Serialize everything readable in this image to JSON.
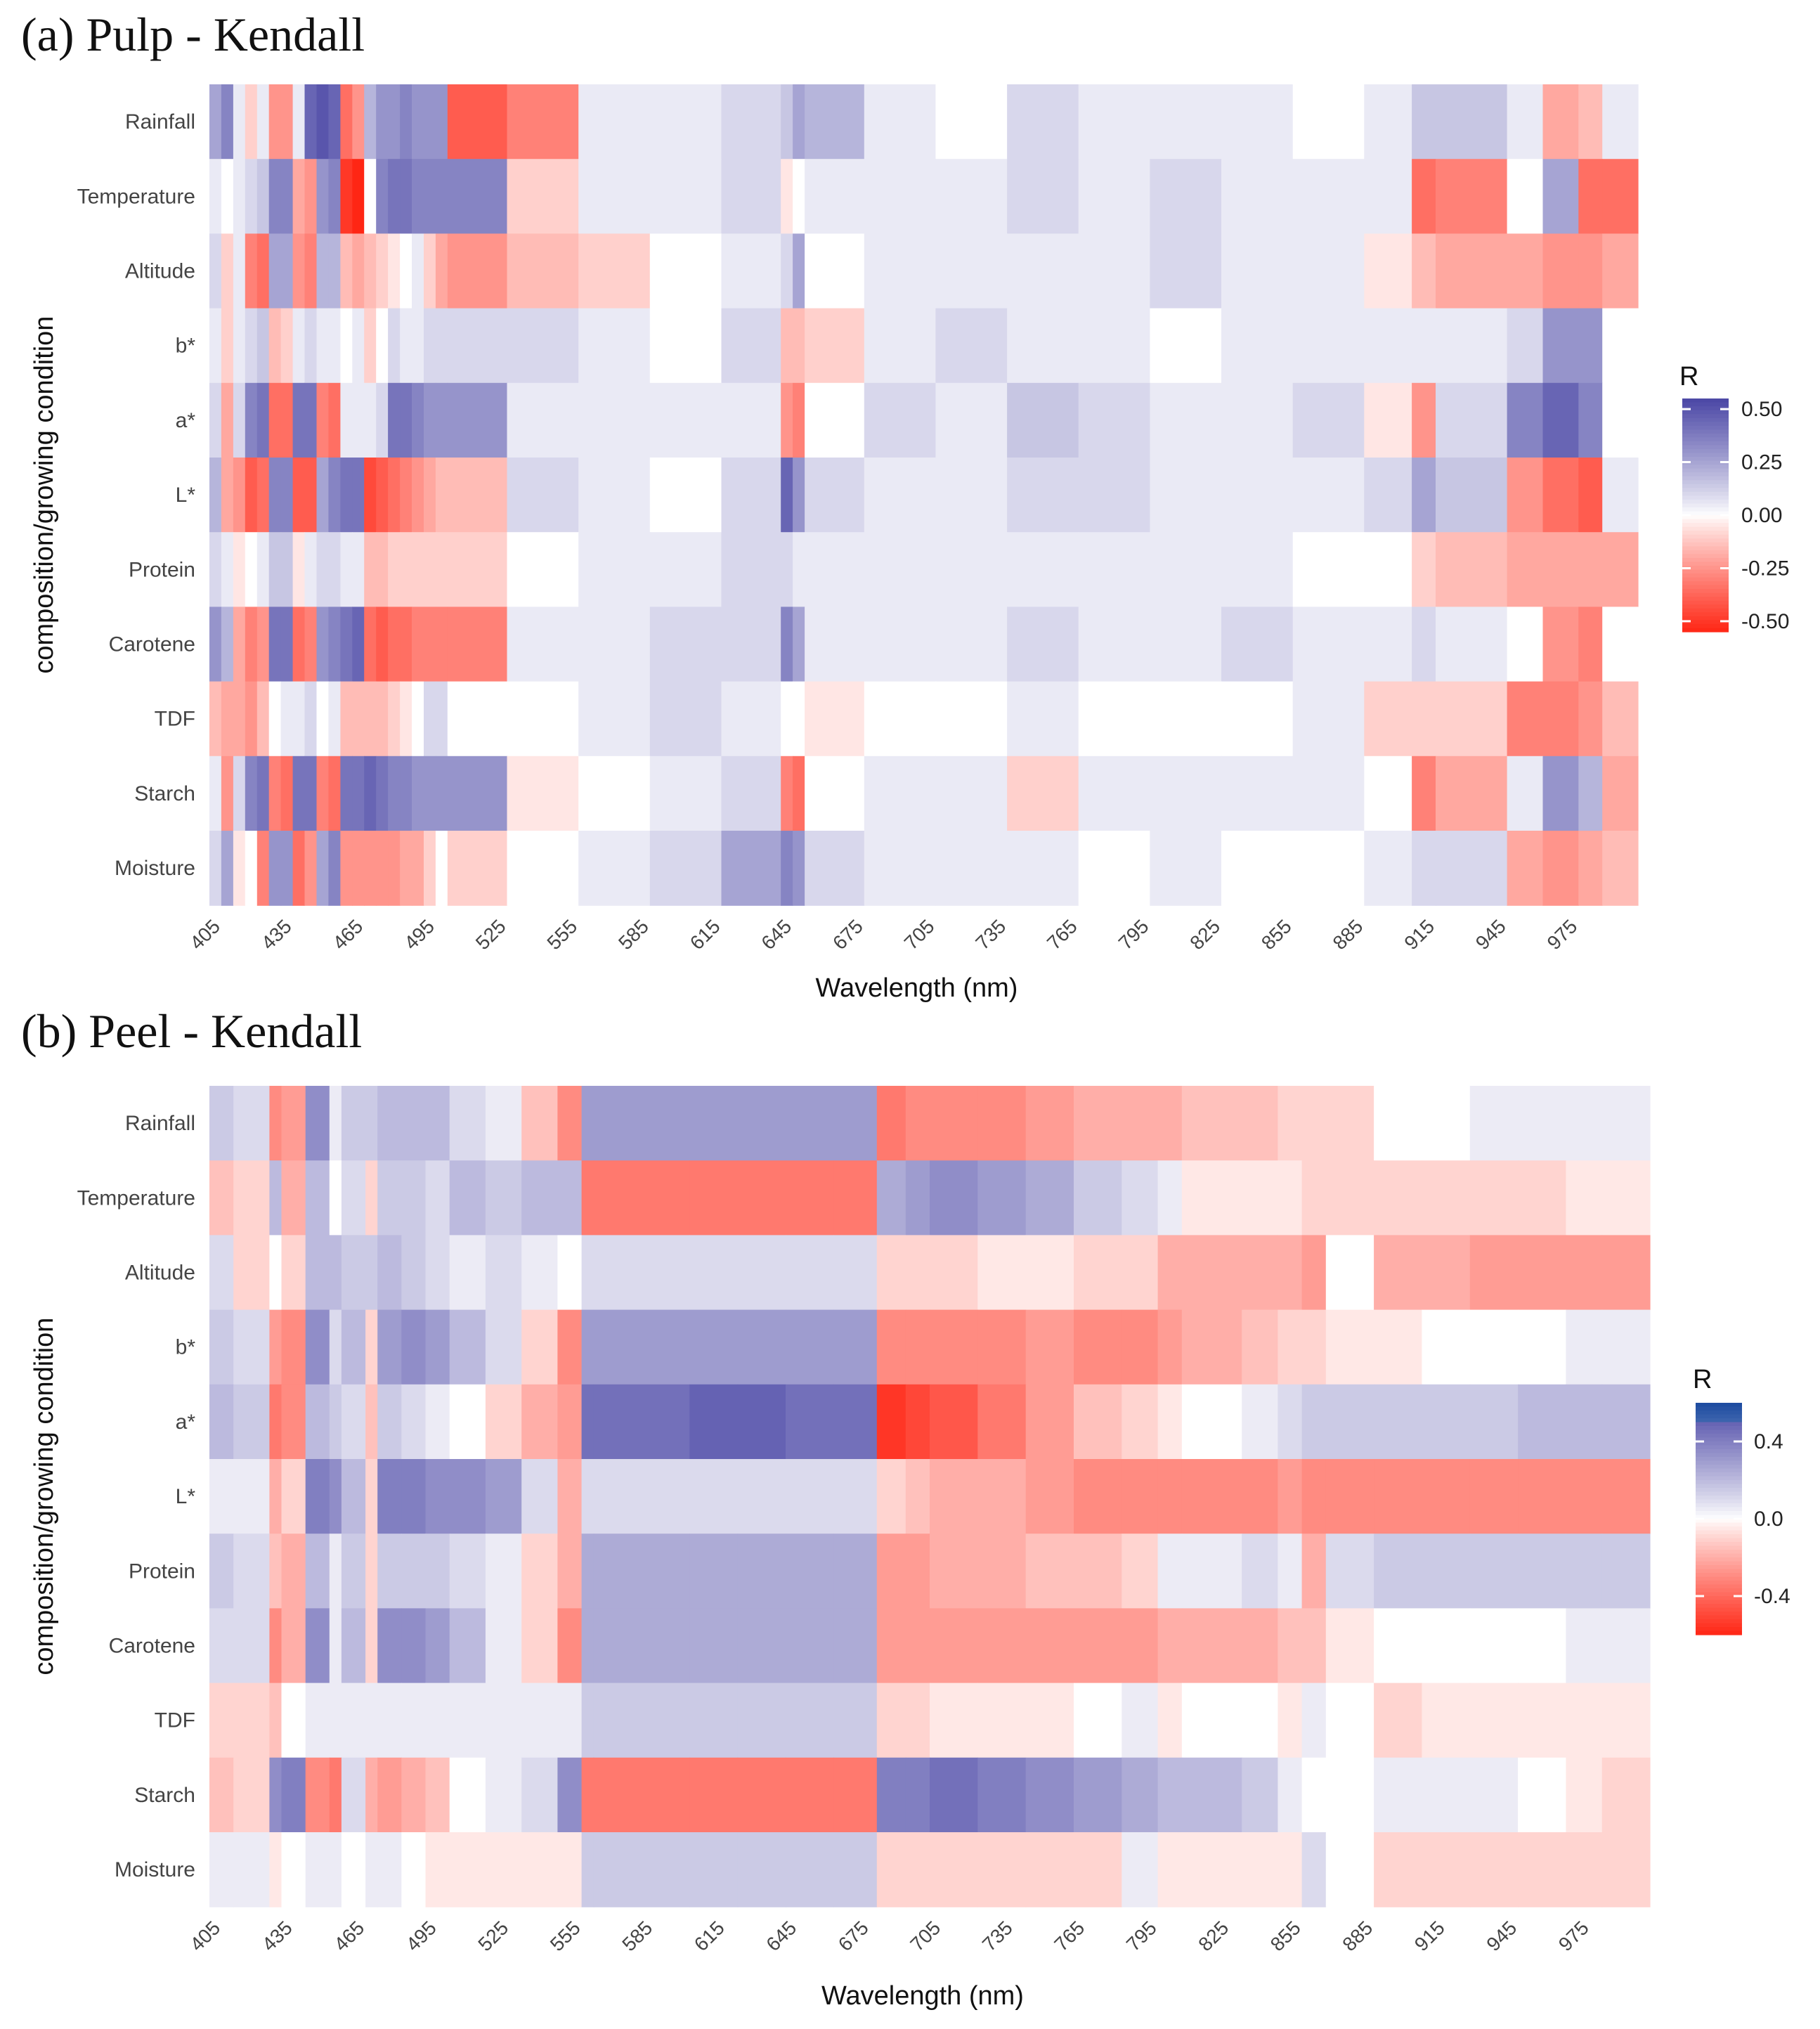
{
  "chart_data": [
    {
      "type": "heatmap",
      "title": "(a) Pulp - Kendall",
      "xlabel": "Wavelength (nm)",
      "ylabel": "composition/growing condition",
      "rows": [
        "Rainfall",
        "Temperature",
        "Altitude",
        "b*",
        "a*",
        "L*",
        "Protein",
        "Carotene",
        "TDF",
        "Starch",
        "Moisture"
      ],
      "x_ticks": [
        405,
        435,
        465,
        495,
        525,
        555,
        585,
        615,
        645,
        675,
        705,
        735,
        765,
        795,
        825,
        855,
        885,
        915,
        945,
        975
      ],
      "x_range": [
        400,
        1000
      ],
      "bins": [
        400,
        405,
        410,
        415,
        420,
        425,
        430,
        435,
        440,
        445,
        450,
        455,
        460,
        465,
        470,
        475,
        480,
        485,
        490,
        495,
        500,
        525,
        555,
        585,
        615,
        640,
        645,
        650,
        675,
        705,
        735,
        765,
        795,
        825,
        855,
        885,
        905,
        915,
        945,
        960,
        975,
        985,
        1000
      ],
      "values": {
        "Rainfall": [
          0.25,
          0.35,
          0.05,
          -0.1,
          0.05,
          -0.25,
          -0.25,
          0.05,
          0.45,
          0.5,
          0.45,
          -0.35,
          -0.25,
          0.2,
          0.3,
          0.3,
          0.35,
          0.3,
          0.3,
          0.3,
          -0.4,
          -0.3,
          0.05,
          0.05,
          0.1,
          0.15,
          0.25,
          0.2,
          0.05,
          0.0,
          0.1,
          0.05,
          0.05,
          0.05,
          0.0,
          0.05,
          0.15,
          0.15,
          0.05,
          -0.2,
          -0.15,
          0.05
        ],
        "Temperature": [
          0.05,
          0.0,
          0.05,
          0.1,
          0.15,
          0.35,
          0.35,
          -0.2,
          -0.25,
          0.3,
          0.35,
          -0.5,
          -0.55,
          0.0,
          0.35,
          0.4,
          0.4,
          0.35,
          0.35,
          0.35,
          0.35,
          -0.1,
          0.05,
          0.05,
          0.1,
          -0.05,
          0.0,
          0.05,
          0.05,
          0.05,
          0.1,
          0.05,
          0.1,
          0.05,
          0.05,
          0.05,
          -0.35,
          -0.3,
          0.0,
          0.25,
          -0.35,
          -0.35
        ],
        "Altitude": [
          0.1,
          -0.1,
          0.05,
          -0.3,
          -0.35,
          0.25,
          0.25,
          -0.25,
          -0.3,
          0.2,
          0.2,
          -0.15,
          -0.2,
          -0.15,
          -0.1,
          -0.05,
          0.0,
          0.05,
          -0.1,
          -0.2,
          -0.25,
          -0.15,
          -0.1,
          0.0,
          0.05,
          0.1,
          0.25,
          0.0,
          0.05,
          0.05,
          0.05,
          0.05,
          0.1,
          0.05,
          0.05,
          -0.05,
          -0.15,
          -0.2,
          -0.2,
          -0.25,
          -0.25,
          -0.2
        ],
        "b*": [
          0.05,
          -0.1,
          0.05,
          0.1,
          0.15,
          -0.15,
          -0.1,
          0.05,
          0.1,
          0.05,
          0.05,
          0.0,
          0.05,
          -0.1,
          0.0,
          0.1,
          0.05,
          0.05,
          0.1,
          0.1,
          0.1,
          0.1,
          0.05,
          0.0,
          0.1,
          -0.15,
          -0.15,
          -0.1,
          0.05,
          0.1,
          0.05,
          0.05,
          0.0,
          0.05,
          0.05,
          0.05,
          0.05,
          0.05,
          0.1,
          0.3,
          0.3,
          0.0
        ],
        "a*": [
          0.1,
          -0.2,
          0.1,
          0.35,
          0.4,
          -0.35,
          -0.35,
          0.4,
          0.4,
          -0.3,
          -0.35,
          0.05,
          0.05,
          0.05,
          0.1,
          0.4,
          0.4,
          0.35,
          0.3,
          0.3,
          0.3,
          0.05,
          0.05,
          0.05,
          0.05,
          -0.25,
          -0.3,
          0.0,
          0.1,
          0.05,
          0.15,
          0.1,
          0.05,
          0.05,
          0.1,
          -0.05,
          -0.25,
          0.1,
          0.35,
          0.45,
          0.35,
          0.0
        ],
        "L*": [
          0.2,
          -0.2,
          -0.25,
          -0.4,
          -0.35,
          0.35,
          0.35,
          -0.4,
          -0.4,
          0.25,
          0.35,
          0.4,
          0.4,
          -0.45,
          -0.4,
          -0.35,
          -0.3,
          -0.25,
          -0.2,
          -0.15,
          -0.15,
          0.1,
          0.05,
          0.0,
          0.1,
          0.45,
          0.3,
          0.1,
          0.05,
          0.05,
          0.1,
          0.1,
          0.05,
          0.05,
          0.05,
          0.1,
          0.25,
          0.15,
          -0.25,
          -0.35,
          -0.4,
          0.05
        ],
        "Protein": [
          0.1,
          0.05,
          -0.05,
          0.0,
          0.05,
          0.15,
          0.15,
          -0.05,
          0.05,
          0.1,
          0.1,
          0.05,
          0.05,
          -0.15,
          -0.15,
          -0.1,
          -0.1,
          -0.1,
          -0.1,
          -0.1,
          -0.1,
          0.0,
          0.05,
          0.05,
          0.1,
          0.1,
          0.05,
          0.05,
          0.05,
          0.05,
          0.05,
          0.05,
          0.05,
          0.05,
          0.0,
          0.0,
          -0.1,
          -0.15,
          -0.2,
          -0.2,
          -0.2,
          -0.2
        ],
        "Carotene": [
          0.3,
          0.2,
          -0.2,
          -0.3,
          -0.25,
          0.4,
          0.4,
          -0.35,
          -0.3,
          0.3,
          0.35,
          0.4,
          0.45,
          -0.35,
          -0.4,
          -0.35,
          -0.35,
          -0.3,
          -0.3,
          -0.3,
          -0.3,
          0.05,
          0.05,
          0.1,
          0.1,
          0.35,
          0.25,
          0.05,
          0.05,
          0.05,
          0.1,
          0.05,
          0.05,
          0.1,
          0.05,
          0.05,
          0.1,
          0.05,
          0.0,
          -0.25,
          -0.3,
          0.0
        ],
        "TDF": [
          -0.15,
          -0.2,
          -0.2,
          -0.25,
          -0.15,
          0.0,
          0.05,
          0.05,
          0.1,
          0.0,
          0.05,
          -0.15,
          -0.15,
          -0.15,
          -0.15,
          -0.1,
          -0.05,
          0.0,
          0.1,
          0.1,
          0.0,
          0.0,
          0.05,
          0.1,
          0.05,
          0.0,
          0.0,
          -0.05,
          0.0,
          0.0,
          0.05,
          0.0,
          0.0,
          0.0,
          0.05,
          -0.1,
          -0.1,
          -0.1,
          -0.3,
          -0.3,
          -0.25,
          -0.15
        ],
        "Starch": [
          0.05,
          -0.25,
          0.1,
          0.35,
          0.4,
          -0.3,
          -0.35,
          0.4,
          0.4,
          -0.3,
          -0.35,
          0.4,
          0.4,
          0.45,
          0.4,
          0.35,
          0.35,
          0.3,
          0.3,
          0.3,
          0.3,
          -0.05,
          0.0,
          0.05,
          0.1,
          -0.3,
          -0.35,
          0.0,
          0.05,
          0.05,
          -0.1,
          0.05,
          0.05,
          0.05,
          0.05,
          0.0,
          -0.3,
          -0.2,
          0.05,
          0.3,
          0.2,
          -0.2
        ],
        "Moisture": [
          0.1,
          0.25,
          -0.05,
          0.0,
          -0.3,
          0.3,
          0.3,
          -0.35,
          -0.25,
          0.25,
          0.35,
          -0.25,
          -0.25,
          -0.25,
          -0.25,
          -0.25,
          -0.2,
          -0.2,
          -0.1,
          0.0,
          -0.1,
          0.0,
          0.05,
          0.1,
          0.25,
          0.35,
          0.3,
          0.1,
          0.05,
          0.05,
          0.05,
          0.0,
          0.05,
          0.0,
          0.0,
          0.05,
          0.1,
          0.1,
          -0.2,
          -0.25,
          -0.2,
          -0.15
        ]
      },
      "legend": {
        "title": "R",
        "ticks": [
          0.5,
          0.25,
          0.0,
          -0.25,
          -0.5
        ],
        "tick_labels": [
          "0.50",
          "0.25",
          "0.00",
          "-0.25",
          "-0.50"
        ],
        "range": [
          -0.55,
          0.55
        ]
      }
    },
    {
      "type": "heatmap",
      "title": "(b) Peel - Kendall",
      "xlabel": "Wavelength (nm)",
      "ylabel": "composition/growing condition",
      "rows": [
        "Rainfall",
        "Temperature",
        "Altitude",
        "b*",
        "a*",
        "L*",
        "Protein",
        "Carotene",
        "TDF",
        "Starch",
        "Moisture"
      ],
      "x_ticks": [
        405,
        435,
        465,
        495,
        525,
        555,
        585,
        615,
        645,
        675,
        705,
        735,
        765,
        795,
        825,
        855,
        885,
        915,
        945,
        975
      ],
      "x_range": [
        400,
        1000
      ],
      "bins": [
        400,
        410,
        425,
        430,
        440,
        450,
        455,
        465,
        470,
        480,
        490,
        500,
        515,
        530,
        545,
        555,
        560,
        600,
        620,
        640,
        660,
        678,
        690,
        700,
        720,
        740,
        760,
        780,
        795,
        805,
        830,
        845,
        855,
        865,
        885,
        905,
        925,
        945,
        965,
        980,
        1000
      ],
      "values": {
        "Rainfall": [
          0.15,
          0.1,
          -0.3,
          -0.25,
          0.35,
          0.05,
          0.15,
          0.15,
          0.2,
          0.2,
          0.2,
          0.1,
          0.05,
          -0.15,
          -0.3,
          0.3,
          0.3,
          0.3,
          0.3,
          0.3,
          0.3,
          -0.35,
          -0.3,
          -0.3,
          -0.3,
          -0.25,
          -0.2,
          -0.2,
          -0.2,
          -0.15,
          -0.15,
          -0.1,
          -0.1,
          -0.1,
          0.0,
          0.0,
          0.05,
          0.05,
          0.05,
          0.05
        ],
        "Temperature": [
          -0.15,
          -0.1,
          0.2,
          -0.2,
          0.2,
          0.0,
          0.1,
          -0.1,
          0.15,
          0.15,
          0.1,
          0.2,
          0.15,
          0.2,
          0.2,
          -0.35,
          -0.35,
          -0.35,
          -0.35,
          -0.35,
          -0.35,
          0.25,
          0.3,
          0.35,
          0.3,
          0.25,
          0.15,
          0.1,
          0.05,
          -0.05,
          -0.05,
          -0.05,
          -0.1,
          -0.1,
          -0.1,
          -0.1,
          -0.1,
          -0.1,
          -0.05,
          -0.05
        ],
        "Altitude": [
          0.1,
          -0.1,
          0.0,
          -0.1,
          0.2,
          0.2,
          0.15,
          0.15,
          0.2,
          0.15,
          0.1,
          0.05,
          0.1,
          0.05,
          0.0,
          0.1,
          0.1,
          0.1,
          0.1,
          0.1,
          0.1,
          -0.1,
          -0.1,
          -0.1,
          -0.05,
          -0.05,
          -0.1,
          -0.1,
          -0.2,
          -0.2,
          -0.2,
          -0.2,
          -0.25,
          0.0,
          -0.2,
          -0.2,
          -0.25,
          -0.25,
          -0.25,
          -0.25
        ],
        "b*": [
          0.15,
          0.1,
          -0.25,
          -0.3,
          0.35,
          0.1,
          0.2,
          -0.1,
          0.3,
          0.35,
          0.3,
          0.2,
          0.1,
          -0.1,
          -0.3,
          0.3,
          0.3,
          0.3,
          0.3,
          0.3,
          0.3,
          -0.3,
          -0.3,
          -0.3,
          -0.3,
          -0.25,
          -0.3,
          -0.3,
          -0.25,
          -0.2,
          -0.15,
          -0.1,
          -0.1,
          -0.05,
          -0.05,
          0.0,
          0.0,
          0.0,
          0.05,
          0.05
        ],
        "a*": [
          0.2,
          0.15,
          -0.35,
          -0.3,
          0.2,
          0.15,
          0.1,
          -0.15,
          0.15,
          0.1,
          0.05,
          0.0,
          -0.1,
          -0.2,
          -0.25,
          0.45,
          0.45,
          0.5,
          0.5,
          0.45,
          0.45,
          -0.55,
          -0.5,
          -0.45,
          -0.35,
          -0.25,
          -0.15,
          -0.1,
          -0.05,
          0.0,
          0.05,
          0.1,
          0.15,
          0.15,
          0.15,
          0.15,
          0.15,
          0.2,
          0.2,
          0.2
        ],
        "L*": [
          0.05,
          0.05,
          -0.2,
          -0.1,
          0.4,
          0.35,
          0.2,
          -0.1,
          0.4,
          0.4,
          0.35,
          0.35,
          0.3,
          0.1,
          -0.2,
          0.1,
          0.1,
          0.1,
          0.1,
          0.1,
          0.1,
          -0.1,
          -0.15,
          -0.2,
          -0.2,
          -0.25,
          -0.3,
          -0.3,
          -0.3,
          -0.3,
          -0.3,
          -0.25,
          -0.3,
          -0.3,
          -0.3,
          -0.3,
          -0.3,
          -0.3,
          -0.3,
          -0.3
        ],
        "Protein": [
          0.15,
          0.1,
          -0.15,
          -0.2,
          0.2,
          0.05,
          0.15,
          -0.1,
          0.15,
          0.15,
          0.15,
          0.1,
          0.05,
          -0.1,
          -0.2,
          0.25,
          0.25,
          0.25,
          0.25,
          0.25,
          0.25,
          -0.25,
          -0.25,
          -0.2,
          -0.2,
          -0.15,
          -0.15,
          -0.1,
          0.05,
          0.05,
          0.1,
          0.05,
          -0.2,
          0.1,
          0.15,
          0.15,
          0.15,
          0.15,
          0.15,
          0.15
        ],
        "Carotene": [
          0.1,
          0.1,
          -0.3,
          -0.2,
          0.35,
          0.05,
          0.2,
          -0.1,
          0.35,
          0.35,
          0.3,
          0.2,
          0.05,
          -0.1,
          -0.3,
          0.25,
          0.25,
          0.25,
          0.25,
          0.25,
          0.25,
          -0.25,
          -0.25,
          -0.25,
          -0.25,
          -0.25,
          -0.25,
          -0.25,
          -0.2,
          -0.2,
          -0.2,
          -0.15,
          -0.15,
          -0.05,
          0.0,
          0.0,
          0.0,
          0.0,
          0.05,
          0.05
        ],
        "TDF": [
          -0.1,
          -0.1,
          -0.15,
          0.0,
          0.05,
          0.05,
          0.05,
          0.05,
          0.05,
          0.05,
          0.05,
          0.05,
          0.05,
          0.05,
          0.05,
          0.15,
          0.15,
          0.15,
          0.15,
          0.15,
          0.15,
          -0.1,
          -0.1,
          -0.05,
          -0.05,
          -0.05,
          0.0,
          0.05,
          -0.05,
          0.0,
          0.0,
          -0.05,
          0.05,
          0.0,
          -0.1,
          -0.05,
          -0.05,
          -0.05,
          -0.05,
          -0.05
        ],
        "Starch": [
          -0.15,
          -0.1,
          0.35,
          0.4,
          -0.3,
          -0.35,
          0.1,
          -0.2,
          -0.25,
          -0.2,
          -0.15,
          0.0,
          0.05,
          0.1,
          0.35,
          -0.35,
          -0.35,
          -0.35,
          -0.35,
          -0.35,
          -0.35,
          0.4,
          0.4,
          0.45,
          0.4,
          0.35,
          0.3,
          0.25,
          0.2,
          0.2,
          0.15,
          0.05,
          0.0,
          0.0,
          0.05,
          0.05,
          0.05,
          0.0,
          -0.05,
          -0.1
        ],
        "Moisture": [
          0.05,
          0.05,
          -0.05,
          0.0,
          0.05,
          0.05,
          0.0,
          0.05,
          0.05,
          0.0,
          -0.05,
          -0.05,
          -0.05,
          -0.05,
          -0.05,
          0.15,
          0.15,
          0.15,
          0.15,
          0.15,
          0.15,
          -0.1,
          -0.1,
          -0.1,
          -0.1,
          -0.1,
          -0.1,
          0.05,
          -0.05,
          -0.05,
          -0.05,
          -0.05,
          0.1,
          0.0,
          -0.1,
          -0.1,
          -0.1,
          -0.1,
          -0.1,
          -0.1
        ]
      },
      "legend": {
        "title": "R",
        "ticks": [
          0.4,
          0.0,
          -0.4
        ],
        "tick_labels": [
          "0.4",
          "0.0",
          "-0.4"
        ],
        "range": [
          -0.6,
          0.6
        ]
      }
    }
  ]
}
